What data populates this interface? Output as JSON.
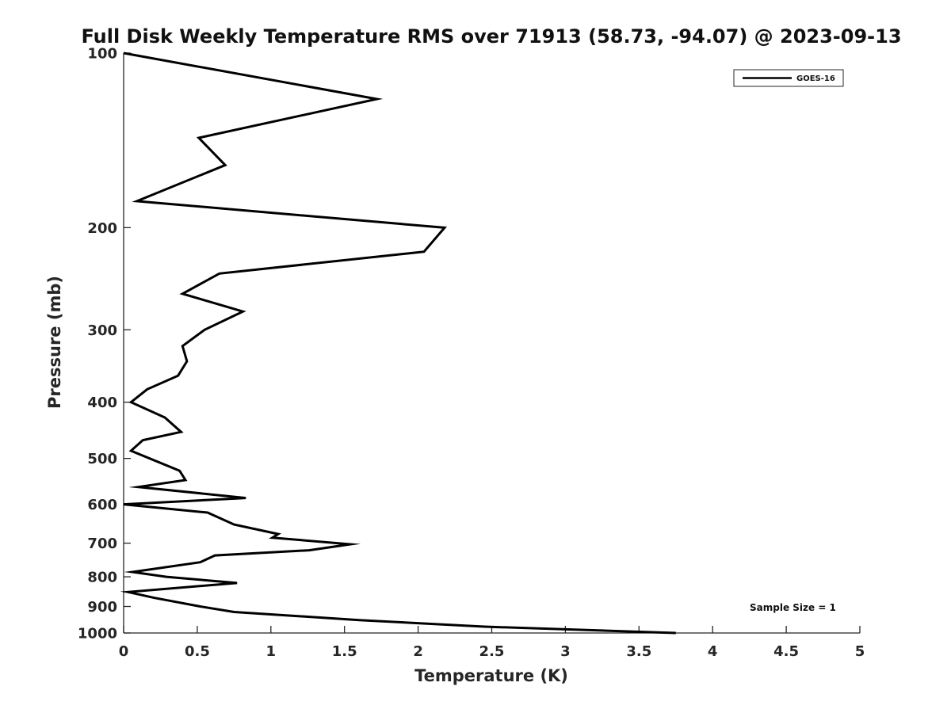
{
  "chart_data": {
    "type": "line",
    "title": "Full Disk Weekly Temperature RMS over 71913 (58.73, -94.07) @ 2023-09-13",
    "xlabel": "Temperature (K)",
    "ylabel": "Pressure (mb)",
    "xlim": [
      0,
      5
    ],
    "ylim": [
      100,
      1000
    ],
    "y_scale": "log",
    "y_direction": "reversed",
    "x_ticks": [
      0,
      0.5,
      1,
      1.5,
      2,
      2.5,
      3,
      3.5,
      4,
      4.5,
      5
    ],
    "x_tick_labels": [
      "0",
      "0.5",
      "1",
      "1.5",
      "2",
      "2.5",
      "3",
      "3.5",
      "4",
      "4.5",
      "5"
    ],
    "y_ticks": [
      100,
      200,
      300,
      400,
      500,
      600,
      700,
      800,
      900,
      1000
    ],
    "y_tick_labels": [
      "100",
      "200",
      "300",
      "400",
      "500",
      "600",
      "700",
      "800",
      "900",
      "1000"
    ],
    "grid": false,
    "legend_position": "top-right",
    "series": [
      {
        "name": "GOES-16",
        "color": "#000000",
        "points": [
          {
            "x": 0.0,
            "y": 100
          },
          {
            "x": 1.72,
            "y": 120
          },
          {
            "x": 0.51,
            "y": 140
          },
          {
            "x": 0.69,
            "y": 156
          },
          {
            "x": 0.09,
            "y": 180
          },
          {
            "x": 2.18,
            "y": 200
          },
          {
            "x": 2.04,
            "y": 220
          },
          {
            "x": 0.65,
            "y": 240
          },
          {
            "x": 0.4,
            "y": 260
          },
          {
            "x": 0.81,
            "y": 279
          },
          {
            "x": 0.55,
            "y": 300
          },
          {
            "x": 0.4,
            "y": 320
          },
          {
            "x": 0.43,
            "y": 340
          },
          {
            "x": 0.37,
            "y": 360
          },
          {
            "x": 0.16,
            "y": 380
          },
          {
            "x": 0.05,
            "y": 400
          },
          {
            "x": 0.28,
            "y": 425
          },
          {
            "x": 0.39,
            "y": 450
          },
          {
            "x": 0.13,
            "y": 465
          },
          {
            "x": 0.05,
            "y": 485
          },
          {
            "x": 0.38,
            "y": 525
          },
          {
            "x": 0.42,
            "y": 545
          },
          {
            "x": 0.1,
            "y": 560
          },
          {
            "x": 0.83,
            "y": 585
          },
          {
            "x": 0.0,
            "y": 600
          },
          {
            "x": 0.57,
            "y": 620
          },
          {
            "x": 0.75,
            "y": 650
          },
          {
            "x": 1.05,
            "y": 675
          },
          {
            "x": 1.01,
            "y": 685
          },
          {
            "x": 1.54,
            "y": 703
          },
          {
            "x": 1.26,
            "y": 720
          },
          {
            "x": 0.62,
            "y": 735
          },
          {
            "x": 0.52,
            "y": 755
          },
          {
            "x": 0.06,
            "y": 785
          },
          {
            "x": 0.29,
            "y": 800
          },
          {
            "x": 0.77,
            "y": 820
          },
          {
            "x": 0.03,
            "y": 850
          },
          {
            "x": 0.21,
            "y": 870
          },
          {
            "x": 0.52,
            "y": 900
          },
          {
            "x": 0.75,
            "y": 920
          },
          {
            "x": 1.6,
            "y": 950
          },
          {
            "x": 2.45,
            "y": 975
          },
          {
            "x": 3.75,
            "y": 1000
          }
        ]
      }
    ],
    "annotations": [
      {
        "text": "Sample Size = 1",
        "position": "bottom-right"
      }
    ]
  }
}
